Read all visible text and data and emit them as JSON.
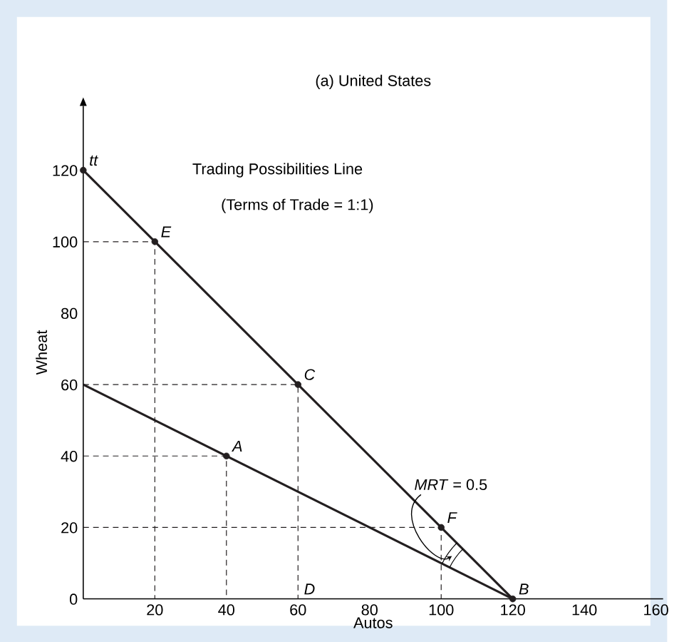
{
  "chart_data": {
    "type": "line",
    "title": "(a) United States",
    "xlabel": "Autos",
    "ylabel": "Wheat",
    "xlim": [
      0,
      162
    ],
    "ylim": [
      0,
      138
    ],
    "xticks": [
      20,
      40,
      60,
      80,
      100,
      120,
      140,
      160
    ],
    "yticks": [
      0,
      20,
      40,
      60,
      80,
      100,
      120
    ],
    "grid": false,
    "series": [
      {
        "color": "#231f20",
        "line_style": "solid",
        "marker": "none",
        "x": [
          0,
          120
        ],
        "values": [
          120,
          0
        ]
      },
      {
        "color": "#231f20",
        "line_style": "solid",
        "marker": "none",
        "x": [
          0,
          120
        ],
        "values": [
          60,
          0
        ]
      },
      {
        "color": "#231f20",
        "line_style": "dashed",
        "marker": "none",
        "x": [
          0,
          20,
          20
        ],
        "values": [
          100,
          100,
          0
        ]
      },
      {
        "color": "#231f20",
        "line_style": "dashed",
        "marker": "none",
        "x": [
          0,
          60,
          60
        ],
        "values": [
          60,
          60,
          0
        ]
      },
      {
        "color": "#231f20",
        "line_style": "dashed",
        "marker": "none",
        "x": [
          0,
          40,
          40
        ],
        "values": [
          40,
          40,
          0
        ]
      },
      {
        "color": "#231f20",
        "line_style": "dashed",
        "marker": "none",
        "x": [
          0,
          100,
          100
        ],
        "values": [
          20,
          20,
          0
        ]
      },
      {
        "type": "scatter",
        "color": "#231f20",
        "marker": "circle",
        "x": [
          0,
          20,
          60,
          40,
          100,
          120
        ],
        "values": [
          120,
          100,
          60,
          40,
          20,
          0
        ]
      }
    ],
    "annotations": [
      {
        "text": "*tt*",
        "x": 0,
        "y": 120
      },
      "Trading Possibilities Line",
      "(Terms of Trade = 1:1)",
      {
        "text": "*E*",
        "x": 20,
        "y": 100
      },
      {
        "text": "*C*",
        "x": 60,
        "y": 60
      },
      {
        "text": "*A*",
        "x": 40,
        "y": 40
      },
      {
        "text": "*F*",
        "x": 100,
        "y": 20
      },
      {
        "text": "*B*",
        "x": 120,
        "y": 0
      },
      {
        "text": "*D*",
        "x": 60,
        "y": 0
      },
      {
        "text": "*MRT* = 0.5",
        "x": 103,
        "y": 12
      }
    ]
  }
}
